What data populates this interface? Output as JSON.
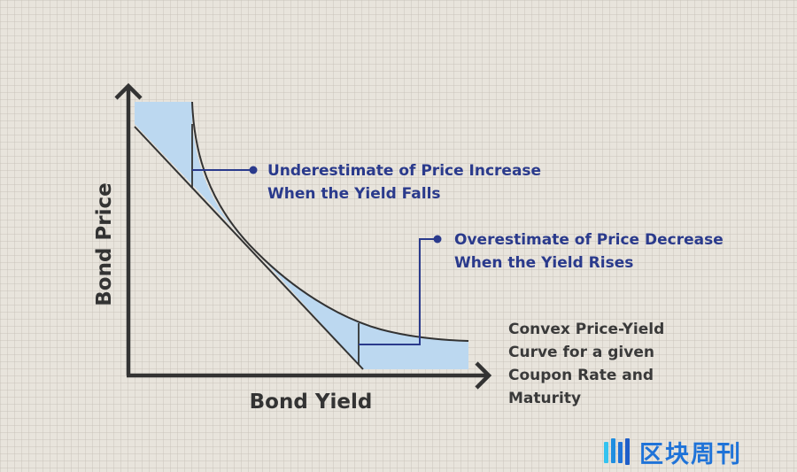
{
  "diagram": {
    "annotation_upper": [
      "Underestimate of Price Increase",
      "When the Yield Falls"
    ],
    "annotation_lower": [
      "Overestimate of Price Decrease",
      "When the Yield Rises"
    ],
    "curve_label": [
      "Convex Price-Yield",
      "Curve for a given",
      "Coupon Rate and",
      "Maturity"
    ],
    "y_axis_label": "Bond Price",
    "x_axis_label": "Bond Yield"
  },
  "watermark": {
    "text": "区块周刊"
  },
  "colors": {
    "annotation_text": "#2a3a8c",
    "shaded_area": "#bcd8f0",
    "axes": "#333333",
    "watermark": "#1f73d8",
    "background": "#e8e4dc"
  }
}
